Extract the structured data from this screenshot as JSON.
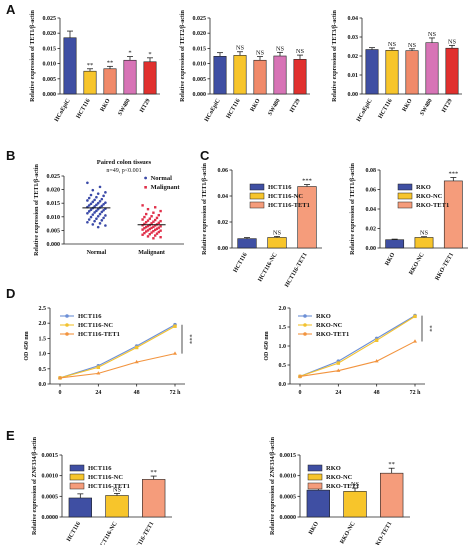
{
  "panel_labels": [
    "A",
    "B",
    "C",
    "D",
    "E"
  ],
  "colors": {
    "HCoEpiC": "#3f4fa3",
    "HCT116": "#f7c52b",
    "RKO": "#f08a6a",
    "SW480": "#d774b6",
    "HT29": "#e0302e",
    "base": "#3f4fa3",
    "nc": "#f7c52b",
    "over": "#f59c7b",
    "normal": "#3b4aa8",
    "malignant": "#e0304a",
    "line_base": "#6c8fd6",
    "line_nc": "#f2c230",
    "line_over": "#f2943f"
  },
  "chart_data": [
    {
      "id": "A1",
      "type": "bar",
      "ylabel": "Relative expression of TET1/β-actin",
      "categories": [
        "HCoEpiC",
        "HCT116",
        "RKO",
        "SW480",
        "HT29"
      ],
      "values": [
        0.0185,
        0.0075,
        0.0083,
        0.0111,
        0.0106
      ],
      "errors": [
        0.0022,
        0.0008,
        0.0008,
        0.0012,
        0.0013
      ],
      "ylim": [
        0,
        0.025
      ],
      "yticks": [
        "0.000",
        "0.005",
        "0.010",
        "0.015",
        "0.020",
        "0.025"
      ],
      "annotations": [
        "",
        "**",
        "**",
        "*",
        "*"
      ]
    },
    {
      "id": "A2",
      "type": "bar",
      "ylabel": "Relative expression of TET2/β-actin",
      "categories": [
        "HCoEpiC",
        "HCT116",
        "RKO",
        "SW480",
        "HT29"
      ],
      "values": [
        0.0124,
        0.0127,
        0.0111,
        0.0125,
        0.0114
      ],
      "errors": [
        0.0012,
        0.0012,
        0.0012,
        0.0012,
        0.0014
      ],
      "ylim": [
        0,
        0.025
      ],
      "yticks": [
        "0.000",
        "0.005",
        "0.010",
        "0.015",
        "0.020",
        "0.025"
      ],
      "annotations": [
        "",
        "NS",
        "NS",
        "NS",
        "NS"
      ]
    },
    {
      "id": "A3",
      "type": "bar",
      "ylabel": "Relative expression of TET3/β-actin",
      "categories": [
        "HCoEpiC",
        "HCT116",
        "RKO",
        "SW480",
        "HT29"
      ],
      "values": [
        0.0234,
        0.023,
        0.0228,
        0.027,
        0.0241
      ],
      "errors": [
        0.001,
        0.0012,
        0.001,
        0.0025,
        0.0015
      ],
      "ylim": [
        0,
        0.04
      ],
      "yticks": [
        "0.00",
        "0.01",
        "0.02",
        "0.03",
        "0.04"
      ],
      "annotations": [
        "",
        "NS",
        "NS",
        "NS",
        "NS"
      ]
    },
    {
      "id": "B",
      "type": "scatter",
      "title": "Paired colon tissues",
      "subtitle": "n=49, p<0.001",
      "ylabel": "Relative expression of TET1/β-actin",
      "categories": [
        "Normal",
        "Malignant"
      ],
      "legend": [
        "Normal",
        "Malignant"
      ],
      "ylim": [
        0,
        0.025
      ],
      "yticks": [
        "0.000",
        "0.005",
        "0.010",
        "0.015",
        "0.020",
        "0.025"
      ],
      "means": [
        0.0133,
        0.0071
      ],
      "normal_values": [
        0.0225,
        0.021,
        0.0198,
        0.019,
        0.0185,
        0.018,
        0.0177,
        0.0172,
        0.0169,
        0.0165,
        0.0162,
        0.016,
        0.0157,
        0.0155,
        0.0152,
        0.015,
        0.0148,
        0.0146,
        0.0144,
        0.0142,
        0.014,
        0.0138,
        0.0136,
        0.0134,
        0.0132,
        0.013,
        0.0128,
        0.0126,
        0.0124,
        0.0122,
        0.012,
        0.0118,
        0.0116,
        0.0113,
        0.011,
        0.0108,
        0.0105,
        0.0102,
        0.0099,
        0.0096,
        0.0093,
        0.009,
        0.0087,
        0.0084,
        0.008,
        0.0076,
        0.0072,
        0.0068,
        0.0062
      ],
      "malignant_values": [
        0.0142,
        0.0135,
        0.0128,
        0.0121,
        0.0115,
        0.011,
        0.0106,
        0.0102,
        0.0099,
        0.0096,
        0.0093,
        0.009,
        0.0088,
        0.0086,
        0.0084,
        0.0082,
        0.008,
        0.0078,
        0.0076,
        0.0074,
        0.0072,
        0.007,
        0.0069,
        0.0068,
        0.0066,
        0.0065,
        0.0063,
        0.0062,
        0.006,
        0.0059,
        0.0058,
        0.0056,
        0.0055,
        0.0053,
        0.0052,
        0.005,
        0.0049,
        0.0047,
        0.0046,
        0.0044,
        0.0042,
        0.004,
        0.0038,
        0.0036,
        0.0034,
        0.0031,
        0.0028,
        0.0025,
        0.0021
      ]
    },
    {
      "id": "C1",
      "type": "bar",
      "ylabel": "Relative expression of TET1/β-actin",
      "categories": [
        "HCT116",
        "HCT116-NC",
        "HCT116-TET1"
      ],
      "legend": [
        "HCT116",
        "HCT116-NC",
        "HCT116-TET1"
      ],
      "values": [
        0.0072,
        0.0081,
        0.0473
      ],
      "errors": [
        0.0008,
        0.0008,
        0.0015
      ],
      "ylim": [
        0,
        0.06
      ],
      "yticks": [
        "0.00",
        "0.02",
        "0.04",
        "0.06"
      ],
      "annotations": [
        "",
        "NS",
        "***"
      ]
    },
    {
      "id": "C2",
      "type": "bar",
      "ylabel": "Relative expression of TET1/β-actin",
      "categories": [
        "RKO",
        "RKO-NC",
        "RKO-TET1"
      ],
      "legend": [
        "RKO",
        "RKO-NC",
        "RKO-TET1"
      ],
      "values": [
        0.0085,
        0.0108,
        0.0688
      ],
      "errors": [
        0.0006,
        0.0008,
        0.0035
      ],
      "ylim": [
        0,
        0.08
      ],
      "yticks": [
        "0.00",
        "0.02",
        "0.04",
        "0.06",
        "0.08"
      ],
      "annotations": [
        "",
        "NS",
        "***"
      ]
    },
    {
      "id": "D1",
      "type": "line",
      "ylabel": "OD 450 nm",
      "x": [
        "0",
        "24",
        "48",
        "72 h"
      ],
      "ylim": [
        0,
        2.5
      ],
      "yticks": [
        "0.0",
        "0.5",
        "1.0",
        "1.5",
        "2.0",
        "2.5"
      ],
      "series": [
        {
          "name": "HCT116",
          "values": [
            0.2,
            0.6,
            1.25,
            1.95
          ]
        },
        {
          "name": "HCT116-NC",
          "values": [
            0.2,
            0.55,
            1.2,
            1.9
          ]
        },
        {
          "name": "HCT116-TET1",
          "values": [
            0.2,
            0.35,
            0.72,
            1.0
          ]
        }
      ],
      "annotation": "***"
    },
    {
      "id": "D2",
      "type": "line",
      "ylabel": "OD 450 nm",
      "x": [
        "0",
        "24",
        "48",
        "72 h"
      ],
      "ylim": [
        0,
        2.0
      ],
      "yticks": [
        "0.0",
        "0.5",
        "1.0",
        "1.5",
        "2.0"
      ],
      "series": [
        {
          "name": "RKO",
          "values": [
            0.2,
            0.6,
            1.2,
            1.8
          ]
        },
        {
          "name": "RKO-NC",
          "values": [
            0.2,
            0.55,
            1.15,
            1.78
          ]
        },
        {
          "name": "RKO-TET1",
          "values": [
            0.2,
            0.35,
            0.6,
            1.12
          ]
        }
      ],
      "annotation": "**"
    },
    {
      "id": "E1",
      "type": "bar",
      "ylabel": "Relative expression of ZNF334/β-actin",
      "categories": [
        "HCT116",
        "HCT116-NC",
        "HCT116-TET1"
      ],
      "legend": [
        "HCT116",
        "HCT116-NC",
        "HCT116-TET1"
      ],
      "values": [
        0.00046,
        0.00052,
        0.00091
      ],
      "errors": [
        0.0001,
        5e-05,
        8e-05
      ],
      "ylim": [
        0,
        0.0015
      ],
      "yticks": [
        "0.0000",
        "0.0005",
        "0.0010",
        "0.0015"
      ],
      "annotations": [
        "",
        "NS",
        "**"
      ]
    },
    {
      "id": "E2",
      "type": "bar",
      "ylabel": "Relative expression of ZNF334/β-actin",
      "categories": [
        "RKO",
        "RKO-NC",
        "RKO-TET1"
      ],
      "legend": [
        "RKO",
        "RKO-NC",
        "RKO-TET1"
      ],
      "values": [
        0.00065,
        0.00062,
        0.00106
      ],
      "errors": [
        5e-05,
        8e-05,
        0.00012
      ],
      "ylim": [
        0,
        0.0015
      ],
      "yticks": [
        "0.0000",
        "0.0005",
        "0.0010",
        "0.0015"
      ],
      "annotations": [
        "",
        "NS",
        "**"
      ]
    }
  ]
}
